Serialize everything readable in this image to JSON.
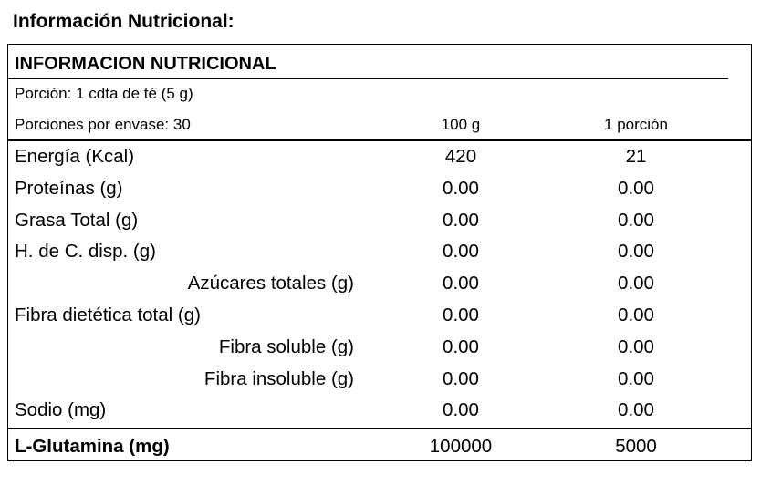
{
  "header": {
    "title": "Información Nutricional:"
  },
  "table": {
    "title": "INFORMACION NUTRICIONAL",
    "serving": "Porción: 1 cdta de té (5 g)",
    "servings_per_container": "Porciones por envase: 30",
    "columns": [
      "100 g",
      "1 porción"
    ],
    "rows": [
      [
        "Energía (Kcal)",
        "420",
        "21"
      ],
      [
        "Proteínas (g)",
        "0.00",
        "0.00"
      ],
      [
        "Grasa Total (g)",
        "0.00",
        "0.00"
      ],
      [
        "H. de C. disp. (g)",
        "0.00",
        "0.00"
      ],
      [
        "Azúcares totales (g)",
        "0.00",
        "0.00"
      ],
      [
        "Fibra dietética total (g)",
        "0.00",
        "0.00"
      ],
      [
        "Fibra soluble (g)",
        "0.00",
        "0.00"
      ],
      [
        "Fibra insoluble (g)",
        "0.00",
        "0.00"
      ],
      [
        "Sodio (mg)",
        "0.00",
        "0.00"
      ]
    ],
    "total_row": [
      "L-Glutamina (mg)",
      "100000",
      "5000"
    ]
  }
}
